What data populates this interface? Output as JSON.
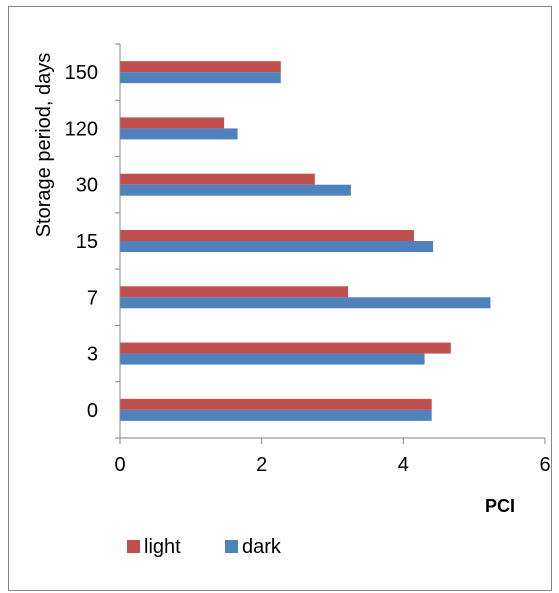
{
  "chart_data": {
    "type": "bar",
    "orientation": "horizontal",
    "categories": [
      "0",
      "3",
      "7",
      "15",
      "30",
      "120",
      "150"
    ],
    "series": [
      {
        "name": "light",
        "color": "#c0504d",
        "values": [
          4.4,
          4.67,
          3.22,
          4.15,
          2.75,
          1.47,
          2.27
        ]
      },
      {
        "name": "dark",
        "color": "#4f81bd",
        "values": [
          4.4,
          4.3,
          5.23,
          4.42,
          3.26,
          1.66,
          2.27
        ]
      }
    ],
    "xlabel": "PCI",
    "ylabel": "Storage period, days",
    "xlim": [
      0,
      6
    ],
    "xticks": [
      "0",
      "2",
      "4",
      "6"
    ],
    "grid": false,
    "legend_position": "bottom-left"
  }
}
